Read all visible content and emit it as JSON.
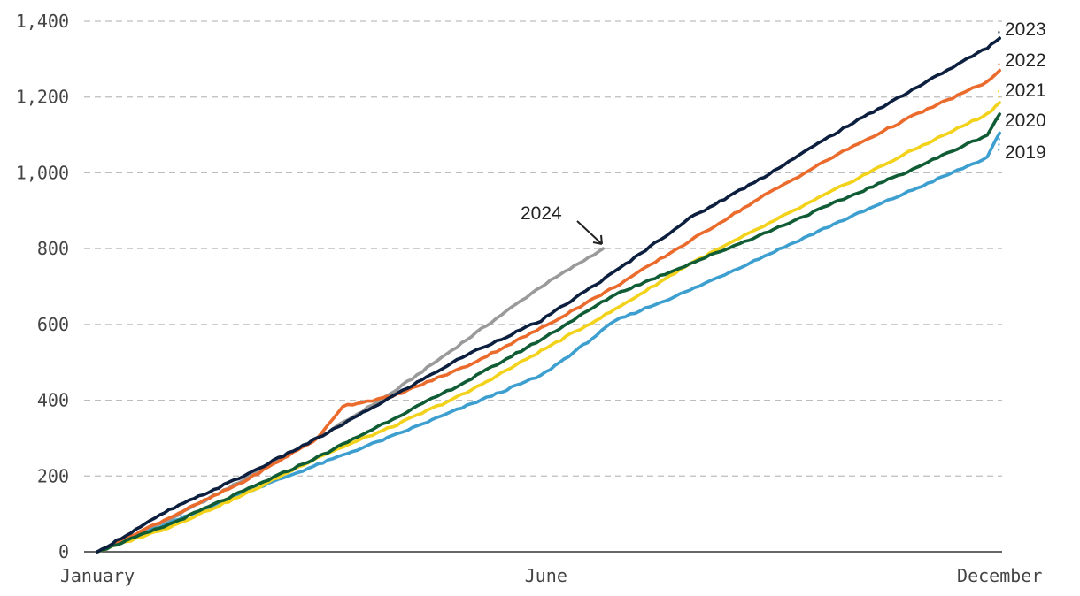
{
  "chart_data": {
    "type": "line",
    "title": "",
    "xlabel": "",
    "ylabel": "",
    "x_ticks": [
      {
        "label": "January",
        "day": 1
      },
      {
        "label": "June",
        "day": 182
      },
      {
        "label": "December",
        "day": 365
      }
    ],
    "x_range_days": [
      1,
      366
    ],
    "ylim": [
      0,
      1400
    ],
    "y_ticks": [
      0,
      200,
      400,
      600,
      800,
      1000,
      1200,
      1400
    ],
    "grid": true,
    "series": [
      {
        "name": "2019",
        "color": "#3c9fcf",
        "points": [
          [
            1,
            0
          ],
          [
            30,
            75
          ],
          [
            60,
            155
          ],
          [
            90,
            230
          ],
          [
            120,
            305
          ],
          [
            150,
            385
          ],
          [
            180,
            465
          ],
          [
            195,
            535
          ],
          [
            210,
            610
          ],
          [
            240,
            690
          ],
          [
            270,
            780
          ],
          [
            300,
            870
          ],
          [
            330,
            955
          ],
          [
            360,
            1040
          ],
          [
            365,
            1105
          ]
        ]
      },
      {
        "name": "2020",
        "color": "#0f5c35",
        "points": [
          [
            1,
            0
          ],
          [
            30,
            72
          ],
          [
            60,
            160
          ],
          [
            90,
            250
          ],
          [
            120,
            350
          ],
          [
            150,
            450
          ],
          [
            180,
            560
          ],
          [
            195,
            620
          ],
          [
            210,
            680
          ],
          [
            240,
            760
          ],
          [
            270,
            840
          ],
          [
            300,
            925
          ],
          [
            330,
            1010
          ],
          [
            360,
            1100
          ],
          [
            365,
            1155
          ]
        ]
      },
      {
        "name": "2021",
        "color": "#f2d21b",
        "points": [
          [
            1,
            0
          ],
          [
            30,
            65
          ],
          [
            60,
            150
          ],
          [
            90,
            250
          ],
          [
            120,
            330
          ],
          [
            150,
            420
          ],
          [
            180,
            530
          ],
          [
            210,
            640
          ],
          [
            240,
            760
          ],
          [
            270,
            860
          ],
          [
            300,
            960
          ],
          [
            330,
            1060
          ],
          [
            360,
            1155
          ],
          [
            365,
            1185
          ]
        ]
      },
      {
        "name": "2022",
        "color": "#eb6b2c",
        "points": [
          [
            1,
            0
          ],
          [
            30,
            90
          ],
          [
            60,
            185
          ],
          [
            90,
            300
          ],
          [
            100,
            385
          ],
          [
            120,
            410
          ],
          [
            150,
            490
          ],
          [
            180,
            590
          ],
          [
            210,
            700
          ],
          [
            240,
            820
          ],
          [
            270,
            940
          ],
          [
            300,
            1050
          ],
          [
            330,
            1150
          ],
          [
            360,
            1240
          ],
          [
            365,
            1270
          ]
        ]
      },
      {
        "name": "2023",
        "color": "#0d1f3f",
        "points": [
          [
            1,
            0
          ],
          [
            30,
            110
          ],
          [
            60,
            200
          ],
          [
            90,
            300
          ],
          [
            120,
            410
          ],
          [
            150,
            520
          ],
          [
            180,
            610
          ],
          [
            210,
            740
          ],
          [
            240,
            880
          ],
          [
            270,
            990
          ],
          [
            300,
            1110
          ],
          [
            330,
            1220
          ],
          [
            360,
            1330
          ],
          [
            365,
            1355
          ]
        ]
      },
      {
        "name": "2024",
        "color": "#9a9a9a",
        "points": [
          [
            1,
            0
          ],
          [
            30,
            85
          ],
          [
            60,
            190
          ],
          [
            90,
            300
          ],
          [
            120,
            420
          ],
          [
            150,
            560
          ],
          [
            180,
            700
          ],
          [
            205,
            800
          ]
        ]
      }
    ],
    "annotation": {
      "text": "2024"
    }
  }
}
